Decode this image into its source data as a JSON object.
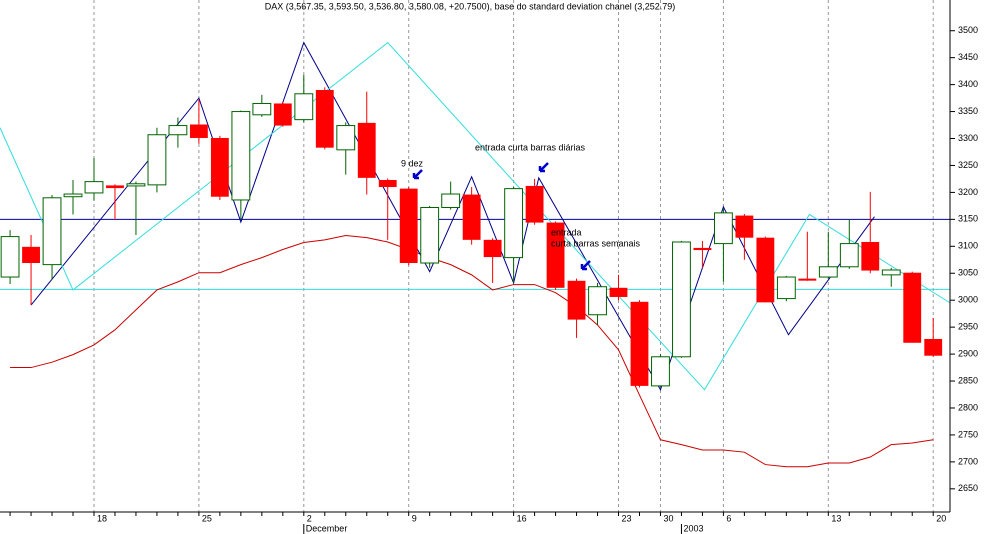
{
  "chart_data": {
    "type": "candlestick",
    "title": "DAX (3,567.35, 3,593.50, 3,536.80, 3,580.08, +20.7500), base do standard deviation chanel (3,252.79)",
    "categories": [
      null,
      null,
      null,
      null,
      "18",
      null,
      null,
      null,
      null,
      "25",
      null,
      null,
      null,
      null,
      "2",
      null,
      null,
      null,
      null,
      "9",
      null,
      null,
      null,
      null,
      "16",
      null,
      null,
      null,
      null,
      "23",
      null,
      "30",
      null,
      null,
      "6",
      null,
      null,
      null,
      null,
      "13",
      null,
      null,
      null,
      null,
      "20"
    ],
    "month_categories": [
      null,
      null,
      null,
      null,
      null,
      null,
      null,
      null,
      null,
      null,
      null,
      null,
      null,
      null,
      "December",
      null,
      null,
      null,
      null,
      null,
      null,
      null,
      null,
      null,
      null,
      null,
      null,
      null,
      null,
      null,
      null,
      null,
      "2003",
      null,
      null,
      null,
      null,
      null,
      null,
      null,
      null,
      null,
      null,
      null,
      null
    ],
    "open": [
      3043,
      3099,
      3066,
      3192,
      3199,
      3213,
      3212,
      3214,
      3307,
      3326,
      3301,
      3186,
      3344,
      3365,
      3335,
      3390,
      3279,
      3329,
      3223,
      3207,
      3069,
      3172,
      3196,
      3112,
      3079,
      3212,
      3144,
      3036,
      2973,
      3023,
      2997,
      2841,
      2895,
      3097,
      3105,
      3157,
      3116,
      3003,
      3040,
      3043,
      3062,
      3108,
      3047,
      3051,
      2928
    ],
    "high": [
      3130,
      3121,
      3195,
      3223,
      3264,
      3215,
      3220,
      3320,
      3339,
      3372,
      3305,
      3352,
      3381,
      3368,
      3418,
      3395,
      3330,
      3387,
      3226,
      3210,
      3175,
      3220,
      3210,
      3115,
      3210,
      3225,
      3146,
      3040,
      3032,
      3047,
      3000,
      2900,
      3110,
      3110,
      3170,
      3160,
      3118,
      3045,
      3127,
      3127,
      3149,
      3201,
      3060,
      3053,
      2967
    ],
    "low": [
      3030,
      2991,
      3038,
      3159,
      3185,
      3149,
      3121,
      3200,
      3283,
      3290,
      3186,
      3150,
      3340,
      3322,
      3330,
      3280,
      3233,
      3196,
      3112,
      3065,
      3060,
      3168,
      3103,
      3032,
      3032,
      3140,
      3019,
      2930,
      2954,
      3000,
      2838,
      2838,
      2893,
      3060,
      3034,
      3075,
      2996,
      2998,
      3036,
      3040,
      3058,
      3050,
      3025,
      2921,
      2895
    ],
    "close": [
      3118,
      3069,
      3190,
      3197,
      3220,
      3208,
      3216,
      3307,
      3324,
      3301,
      3192,
      3350,
      3365,
      3324,
      3383,
      3283,
      3324,
      3227,
      3210,
      3069,
      3172,
      3197,
      3112,
      3080,
      3207,
      3144,
      3023,
      2964,
      3025,
      3006,
      2841,
      2895,
      3108,
      3093,
      3162,
      3116,
      2996,
      3043,
      3038,
      3062,
      3105,
      3055,
      3056,
      2921,
      2897
    ],
    "up_color": "#006400",
    "down_color": "#ff0000",
    "ma_line": {
      "color": "#cc0000",
      "values": [
        2875,
        2875,
        2885,
        2899,
        2917,
        2945,
        2982,
        3019,
        3034,
        3051,
        3051,
        3066,
        3079,
        3094,
        3107,
        3112,
        3120,
        3116,
        3108,
        3094,
        3079,
        3066,
        3047,
        3019,
        3029,
        3029,
        3014,
        2988,
        2954,
        2908,
        2824,
        2741,
        2732,
        2722,
        2722,
        2718,
        2695,
        2691,
        2691,
        2698,
        2698,
        2709,
        2732,
        2735,
        2741
      ]
    },
    "zigzags": [
      {
        "color": "#00008b",
        "x": [
          1,
          9,
          11,
          14,
          20,
          22,
          24,
          25.2,
          31,
          34,
          37.1,
          41.2
        ],
        "values": [
          2991,
          3375,
          3145,
          3478,
          3053,
          3229,
          3032,
          3227,
          2834,
          3173,
          2936,
          3155
        ]
      },
      {
        "color": "#33dddd",
        "x": [
          -0.48,
          3,
          18,
          24.8,
          33.1,
          38.1,
          44.8
        ],
        "values": [
          3320,
          3019,
          3478,
          3186,
          2834,
          3159,
          2995
        ]
      }
    ],
    "hlines": [
      {
        "value": 3150,
        "color": "#0000aa"
      },
      {
        "value": 3020,
        "color": "#33dddd"
      }
    ],
    "annotations": [
      {
        "text": "9 dez",
        "color": "#0000aa"
      },
      {
        "text": "entrada curta barras diárias",
        "color": "#0000aa"
      },
      {
        "text": "entrada",
        "color": "#22cccc"
      },
      {
        "text": "curta barras semanais",
        "color": "#22cccc"
      }
    ],
    "xlim": [
      -0.48,
      44.8
    ],
    "ylim": [
      2607,
      3557
    ],
    "yticks": [
      2650,
      2700,
      2750,
      2800,
      2850,
      2900,
      2950,
      3000,
      3050,
      3100,
      3150,
      3200,
      3250,
      3300,
      3350,
      3400,
      3450,
      3500
    ],
    "grid": true
  }
}
